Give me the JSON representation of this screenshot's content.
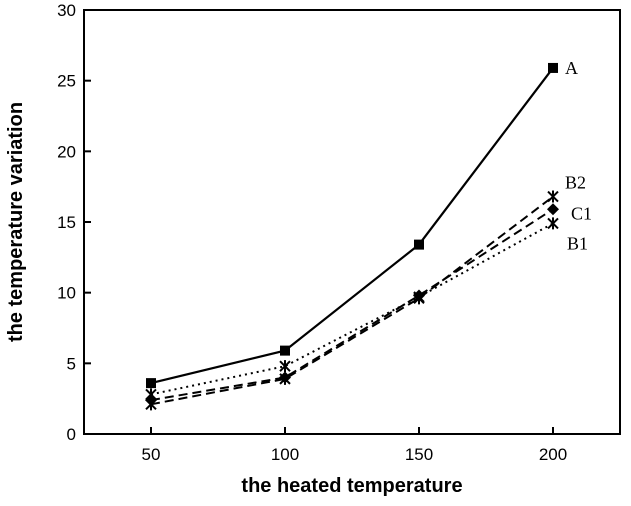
{
  "chart_data": {
    "type": "line",
    "title": "",
    "xlabel": "the heated temperature",
    "ylabel": "the temperature variation",
    "x": [
      50,
      100,
      150,
      200
    ],
    "xticks": [
      "50",
      "100",
      "150",
      "200"
    ],
    "yticks": [
      "0",
      "5",
      "10",
      "15",
      "20",
      "25",
      "30"
    ],
    "xlim": [
      25,
      225
    ],
    "ylim": [
      0,
      30
    ],
    "grid": false,
    "legend": "inline labels at line ends",
    "series": [
      {
        "name": "A",
        "values": [
          3.6,
          5.9,
          13.4,
          25.9
        ],
        "line_style": "solid",
        "marker": "square"
      },
      {
        "name": "B2",
        "values": [
          2.1,
          3.9,
          9.6,
          16.8
        ],
        "line_style": "dashed",
        "marker": "star"
      },
      {
        "name": "C1",
        "values": [
          2.4,
          4.0,
          9.8,
          15.9
        ],
        "line_style": "dashed",
        "marker": "diamond"
      },
      {
        "name": "B1",
        "values": [
          2.8,
          4.8,
          9.7,
          14.9
        ],
        "line_style": "dotted",
        "marker": "star"
      }
    ]
  }
}
